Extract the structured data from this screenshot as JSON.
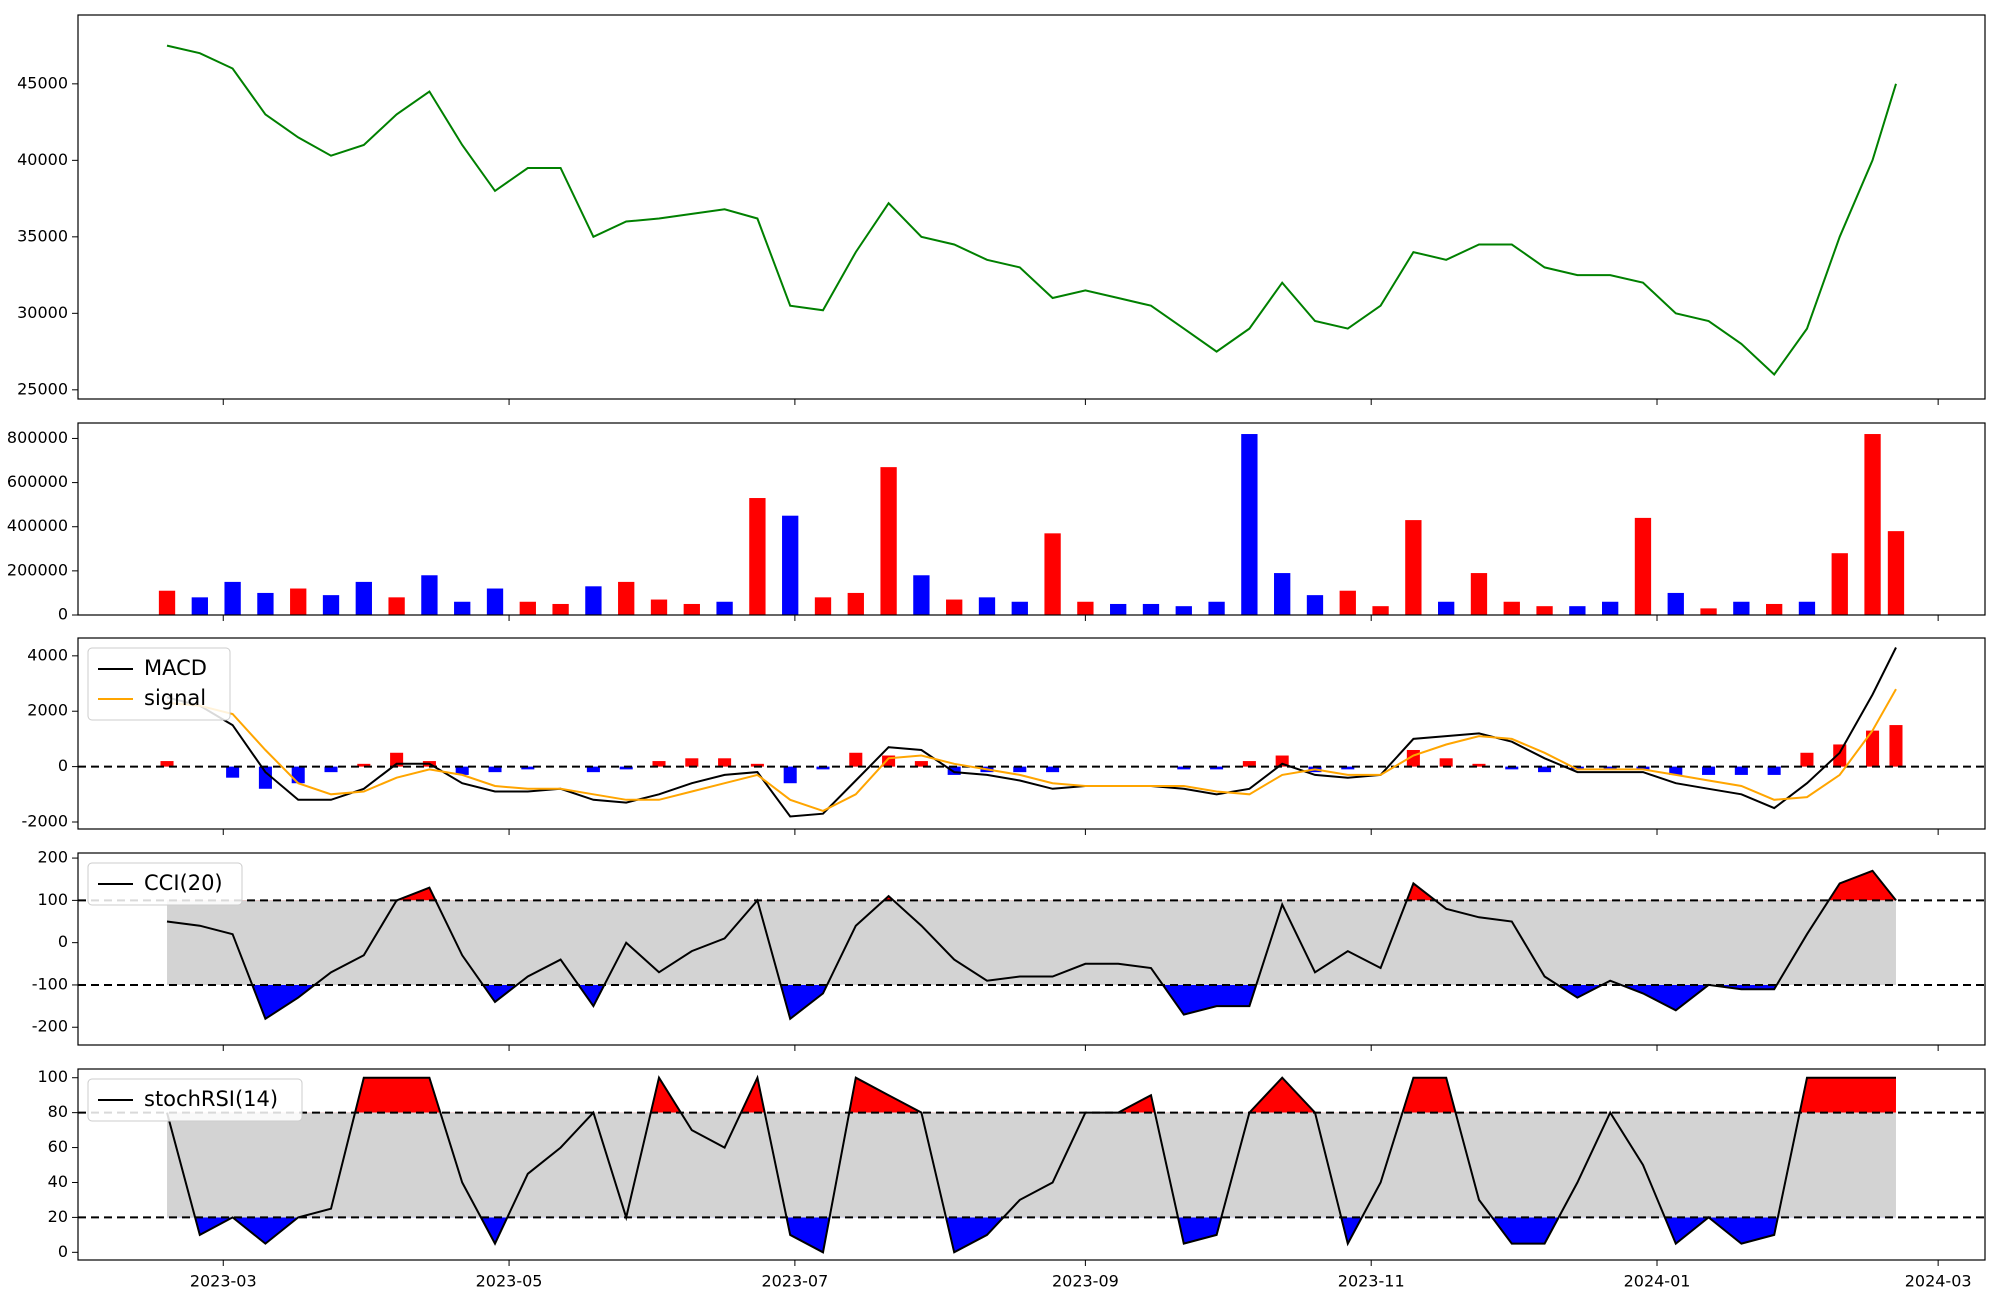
{
  "chart_data": {
    "type": "panels",
    "x": [
      "2023-02-17",
      "2023-02-24",
      "2023-03-03",
      "2023-03-10",
      "2023-03-17",
      "2023-03-24",
      "2023-03-31",
      "2023-04-07",
      "2023-04-14",
      "2023-04-21",
      "2023-04-28",
      "2023-05-05",
      "2023-05-12",
      "2023-05-19",
      "2023-05-26",
      "2023-06-02",
      "2023-06-09",
      "2023-06-16",
      "2023-06-23",
      "2023-06-30",
      "2023-07-07",
      "2023-07-14",
      "2023-07-21",
      "2023-07-28",
      "2023-08-04",
      "2023-08-11",
      "2023-08-18",
      "2023-08-25",
      "2023-09-01",
      "2023-09-08",
      "2023-09-15",
      "2023-09-22",
      "2023-09-29",
      "2023-10-06",
      "2023-10-13",
      "2023-10-20",
      "2023-10-27",
      "2023-11-03",
      "2023-11-10",
      "2023-11-17",
      "2023-11-24",
      "2023-12-01",
      "2023-12-08",
      "2023-12-15",
      "2023-12-22",
      "2023-12-29",
      "2024-01-05",
      "2024-01-12",
      "2024-01-19",
      "2024-01-26",
      "2024-02-02",
      "2024-02-09",
      "2024-02-16",
      "2024-02-21"
    ],
    "xlim": [
      "2023-01-29",
      "2024-03-11"
    ],
    "xticks": [
      {
        "value": "2023-03-01",
        "label": "2023-03"
      },
      {
        "value": "2023-05-01",
        "label": "2023-05"
      },
      {
        "value": "2023-07-01",
        "label": "2023-07"
      },
      {
        "value": "2023-09-01",
        "label": "2023-09"
      },
      {
        "value": "2023-11-01",
        "label": "2023-11"
      },
      {
        "value": "2024-01-01",
        "label": "2024-01"
      },
      {
        "value": "2024-03-01",
        "label": "2024-03"
      }
    ],
    "panels": [
      {
        "type": "line",
        "ylim": [
          24400,
          49500
        ],
        "yticks": [
          25000,
          30000,
          35000,
          40000,
          45000
        ],
        "series": [
          {
            "color": "green",
            "values": [
              47500,
              47000,
              46000,
              43000,
              41500,
              40300,
              41000,
              43000,
              44500,
              41000,
              38000,
              39500,
              39500,
              35000,
              36000,
              36200,
              36500,
              36800,
              36200,
              30500,
              30200,
              34000,
              37200,
              35000,
              34500,
              33500,
              33000,
              31000,
              31500,
              31000,
              30500,
              29000,
              27500,
              29000,
              32000,
              29500,
              29000,
              30500,
              34000,
              33500,
              34500,
              34500,
              33000,
              32500,
              32500,
              32000,
              30000,
              29500,
              28000,
              26000,
              29000,
              35000,
              40000,
              45000
            ]
          }
        ]
      },
      {
        "type": "bar",
        "ylim": [
          0,
          870000
        ],
        "yticks": [
          0,
          200000,
          400000,
          600000,
          800000
        ],
        "values": [
          110000,
          80000,
          150000,
          100000,
          120000,
          90000,
          150000,
          80000,
          180000,
          60000,
          120000,
          60000,
          50000,
          130000,
          150000,
          70000,
          50000,
          60000,
          530000,
          450000,
          80000,
          100000,
          670000,
          180000,
          70000,
          80000,
          60000,
          370000,
          60000,
          50000,
          50000,
          40000,
          60000,
          820000,
          190000,
          90000,
          110000,
          40000,
          430000,
          60000,
          190000,
          60000,
          40000,
          40000,
          60000,
          440000,
          100000,
          30000,
          60000,
          50000,
          60000,
          280000,
          820000,
          380000
        ],
        "colors": [
          "red",
          "blue",
          "blue",
          "blue",
          "red",
          "blue",
          "blue",
          "red",
          "blue",
          "blue",
          "blue",
          "red",
          "red",
          "blue",
          "red",
          "red",
          "red",
          "blue",
          "red",
          "blue",
          "red",
          "red",
          "red",
          "blue",
          "red",
          "blue",
          "blue",
          "red",
          "red",
          "blue",
          "blue",
          "blue",
          "blue",
          "blue",
          "blue",
          "blue",
          "red",
          "red",
          "red",
          "blue",
          "red",
          "red",
          "red",
          "blue",
          "blue",
          "red",
          "blue",
          "red",
          "blue",
          "red",
          "blue",
          "red",
          "red",
          "red"
        ]
      },
      {
        "type": "line",
        "ylim": [
          -2253,
          4644
        ],
        "yticks": [
          -2000,
          0,
          2000,
          4000
        ],
        "hlines": [
          0
        ],
        "legend": "upper left",
        "series": [
          {
            "name": "MACD",
            "color": "black",
            "values": [
              2500,
              2200,
              1500,
              -200,
              -1200,
              -1200,
              -800,
              100,
              100,
              -600,
              -900,
              -900,
              -800,
              -1200,
              -1300,
              -1000,
              -600,
              -300,
              -200,
              -1800,
              -1700,
              -500,
              700,
              600,
              -200,
              -300,
              -500,
              -800,
              -700,
              -700,
              -700,
              -800,
              -1000,
              -800,
              100,
              -300,
              -400,
              -300,
              1000,
              1100,
              1200,
              900,
              300,
              -200,
              -200,
              -200,
              -600,
              -800,
              -1000,
              -1500,
              -600,
              500,
              2600,
              4300
            ]
          },
          {
            "name": "signal",
            "color": "orange",
            "values": [
              2300,
              2200,
              1900,
              600,
              -600,
              -1000,
              -900,
              -400,
              -100,
              -300,
              -700,
              -800,
              -800,
              -1000,
              -1200,
              -1200,
              -900,
              -600,
              -300,
              -1200,
              -1600,
              -1000,
              300,
              400,
              100,
              -100,
              -300,
              -600,
              -700,
              -700,
              -700,
              -700,
              -900,
              -1000,
              -300,
              -100,
              -300,
              -300,
              400,
              800,
              1100,
              1000,
              500,
              -100,
              -100,
              -100,
              -300,
              -500,
              -700,
              -1200,
              -1100,
              -300,
              1300,
              2800
            ]
          }
        ],
        "histogram": {
          "up_color": "red",
          "down_color": "blue",
          "values": [
            200,
            0,
            -400,
            -800,
            -600,
            -200,
            100,
            500,
            200,
            -300,
            -200,
            -100,
            0,
            -200,
            -100,
            200,
            300,
            300,
            100,
            -600,
            -100,
            500,
            400,
            200,
            -300,
            -200,
            -200,
            -200,
            0,
            0,
            0,
            -100,
            -100,
            200,
            400,
            -200,
            -100,
            0,
            600,
            300,
            100,
            -100,
            -200,
            -100,
            -100,
            -100,
            -300,
            -300,
            -300,
            -300,
            500,
            800,
            1300,
            1500
          ]
        }
      },
      {
        "type": "band",
        "ylim": [
          -242,
          212
        ],
        "yticks": [
          -200,
          -100,
          0,
          100,
          200
        ],
        "band": [
          -100,
          100
        ],
        "band_color": "lightgray",
        "above_color": "red",
        "below_color": "blue",
        "legend": "upper left",
        "series": [
          {
            "name": "CCI(20)",
            "color": "black",
            "values": [
              50,
              40,
              20,
              -180,
              -130,
              -70,
              -30,
              100,
              130,
              -30,
              -140,
              -80,
              -40,
              -150,
              0,
              -70,
              -20,
              10,
              100,
              -180,
              -120,
              40,
              110,
              40,
              -40,
              -90,
              -80,
              -80,
              -50,
              -50,
              -60,
              -170,
              -150,
              -150,
              90,
              -70,
              -20,
              -60,
              140,
              80,
              60,
              50,
              -80,
              -130,
              -90,
              -120,
              -160,
              -100,
              -110,
              -110,
              20,
              140,
              170,
              100
            ]
          }
        ]
      },
      {
        "type": "band",
        "ylim": [
          -4.4,
          105
        ],
        "yticks": [
          0,
          20,
          40,
          60,
          80,
          100
        ],
        "band": [
          20,
          80
        ],
        "band_color": "lightgray",
        "above_color": "red",
        "below_color": "blue",
        "legend": "upper left",
        "series": [
          {
            "name": "stochRSI(14)",
            "color": "black",
            "values": [
              80,
              10,
              20,
              5,
              20,
              25,
              100,
              100,
              100,
              40,
              5,
              45,
              60,
              80,
              20,
              100,
              70,
              60,
              100,
              10,
              0,
              100,
              90,
              80,
              0,
              10,
              30,
              40,
              80,
              80,
              90,
              5,
              10,
              80,
              100,
              80,
              5,
              40,
              100,
              100,
              30,
              5,
              5,
              40,
              80,
              50,
              5,
              20,
              5,
              10,
              100,
              100,
              100,
              100
            ]
          }
        ]
      }
    ]
  }
}
